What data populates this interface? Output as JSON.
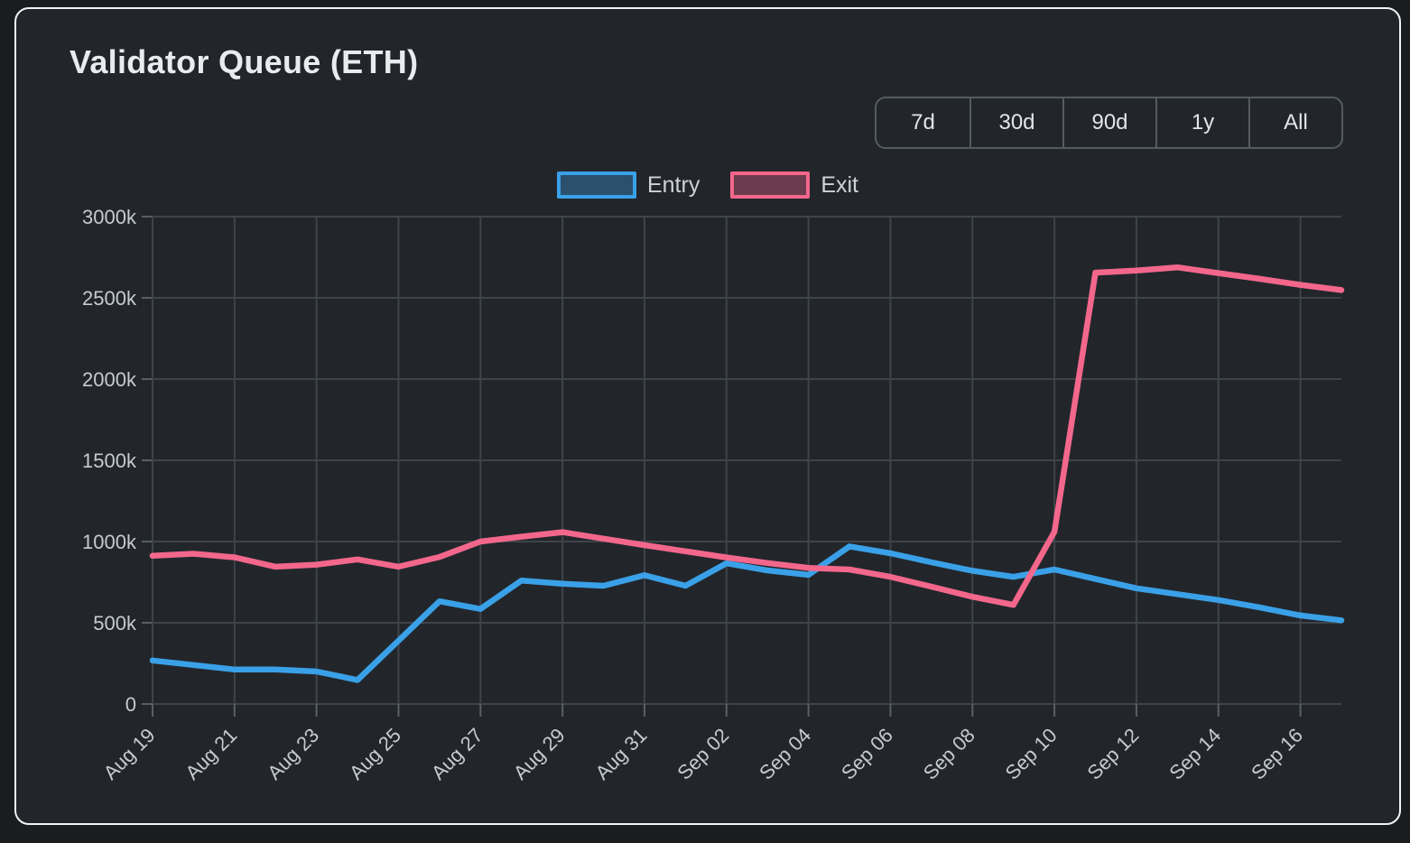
{
  "panel": {
    "title": "Validator Queue (ETH)"
  },
  "time_range": {
    "options": [
      "7d",
      "30d",
      "90d",
      "1y",
      "All"
    ]
  },
  "legend": [
    {
      "label": "Entry",
      "color": "#3aa1e8"
    },
    {
      "label": "Exit",
      "color": "#f4678c"
    }
  ],
  "colors": {
    "background": "#1a1c1f",
    "panel_background": "#22262b",
    "panel_border": "#f2f3f5",
    "grid": "#3f444a",
    "tick": "#5a5f66",
    "axis_text": "#c6cbd1",
    "entry_line": "#3aa1e8",
    "exit_line": "#f4678c"
  },
  "chart_data": {
    "type": "line",
    "title": "Validator Queue (ETH)",
    "xlabel": "",
    "ylabel": "",
    "values_unit": "thousands of ETH (k)",
    "ylim": [
      0,
      3000
    ],
    "y_ticks": [
      "0",
      "500k",
      "1000k",
      "1500k",
      "2000k",
      "2500k",
      "3000k"
    ],
    "x_tick_step": 2,
    "grid": true,
    "legend_position": "top",
    "x": [
      "Aug 19",
      "Aug 20",
      "Aug 21",
      "Aug 22",
      "Aug 23",
      "Aug 24",
      "Aug 25",
      "Aug 26",
      "Aug 27",
      "Aug 28",
      "Aug 29",
      "Aug 30",
      "Aug 31",
      "Sep 01",
      "Sep 02",
      "Sep 03",
      "Sep 04",
      "Sep 05",
      "Sep 06",
      "Sep 07",
      "Sep 08",
      "Sep 09",
      "Sep 10",
      "Sep 11",
      "Sep 12",
      "Sep 13",
      "Sep 14",
      "Sep 15",
      "Sep 16",
      "Sep 17"
    ],
    "series": [
      {
        "name": "Entry",
        "color": "#3aa1e8",
        "values": [
          268,
          240,
          212,
          212,
          200,
          148,
          390,
          632,
          585,
          760,
          740,
          728,
          793,
          728,
          866,
          822,
          795,
          970,
          928,
          872,
          820,
          783,
          828,
          770,
          712,
          676,
          640,
          595,
          545,
          515
        ]
      },
      {
        "name": "Exit",
        "color": "#f4678c",
        "values": [
          912,
          925,
          903,
          845,
          858,
          890,
          845,
          905,
          1000,
          1030,
          1058,
          1018,
          978,
          940,
          902,
          868,
          838,
          828,
          783,
          722,
          660,
          610,
          1060,
          2655,
          2668,
          2688,
          2652,
          2617,
          2580,
          2548
        ]
      }
    ]
  }
}
